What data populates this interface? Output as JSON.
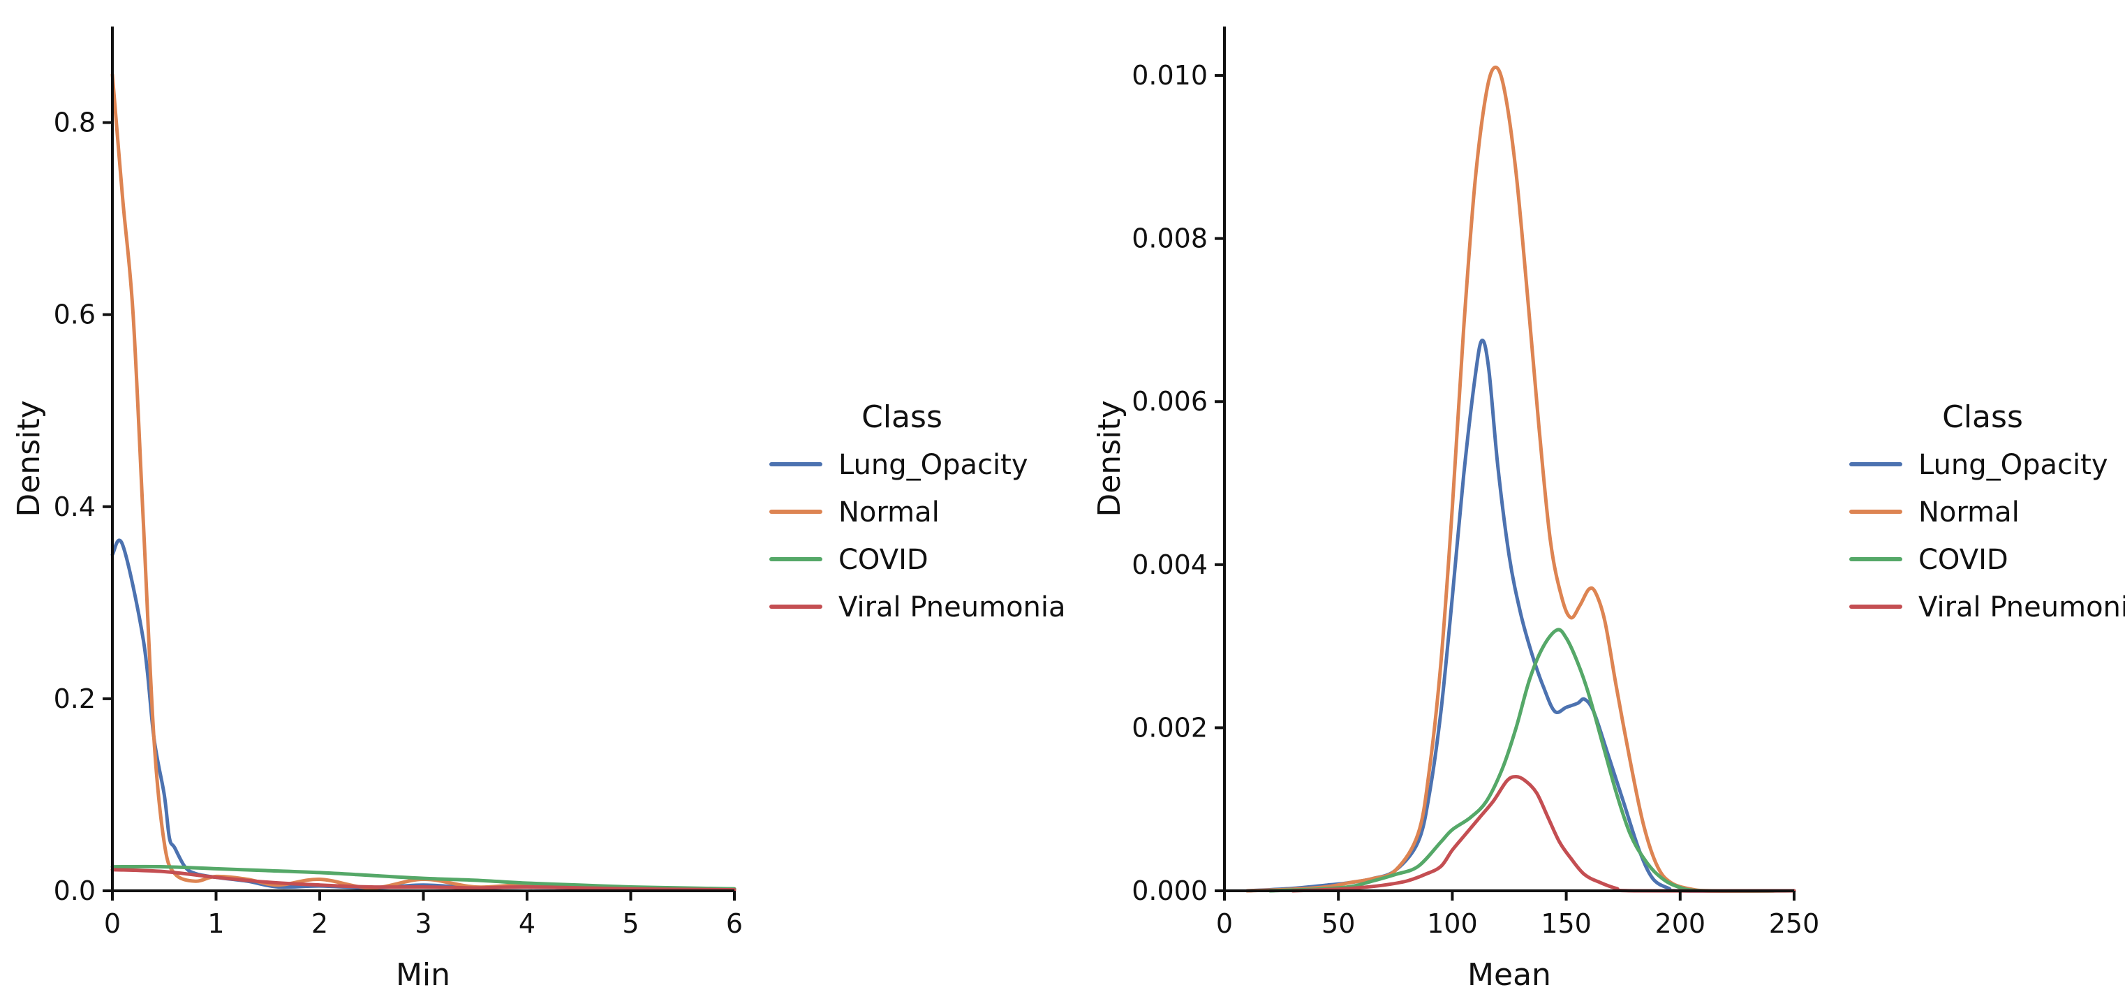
{
  "chart_data": [
    {
      "type": "line",
      "subtype": "kde",
      "xlabel": "Min",
      "ylabel": "Density",
      "xlim": [
        0,
        6
      ],
      "ylim": [
        0,
        0.9
      ],
      "x_ticks": [
        0,
        1,
        2,
        3,
        4,
        5,
        6
      ],
      "x_tick_labels": [
        "0",
        "1",
        "2",
        "3",
        "4",
        "5",
        "6"
      ],
      "y_ticks": [
        0,
        0.2,
        0.4,
        0.6,
        0.8
      ],
      "y_tick_labels": [
        "0.0",
        "0.2",
        "0.4",
        "0.6",
        "0.8"
      ],
      "legend": {
        "title": "Class",
        "position": "right"
      },
      "series": [
        {
          "name": "Lung_Opacity",
          "color": "#4C72B0",
          "points": [
            [
              0,
              0.35
            ],
            [
              0.1,
              0.36
            ],
            [
              0.3,
              0.26
            ],
            [
              0.4,
              0.16
            ],
            [
              0.5,
              0.1
            ],
            [
              0.55,
              0.055
            ],
            [
              0.6,
              0.045
            ],
            [
              0.7,
              0.025
            ],
            [
              0.8,
              0.018
            ],
            [
              1,
              0.014
            ],
            [
              1.3,
              0.01
            ],
            [
              1.6,
              0.004
            ],
            [
              2,
              0.005
            ],
            [
              2.5,
              0.003
            ],
            [
              3,
              0.006
            ],
            [
              3.5,
              0.003
            ],
            [
              4,
              0.004
            ],
            [
              5,
              0.002
            ],
            [
              6,
              0.001
            ]
          ]
        },
        {
          "name": "Normal",
          "color": "#DD8452",
          "points": [
            [
              0,
              0.85
            ],
            [
              0.1,
              0.72
            ],
            [
              0.2,
              0.6
            ],
            [
              0.3,
              0.38
            ],
            [
              0.4,
              0.16
            ],
            [
              0.5,
              0.05
            ],
            [
              0.6,
              0.018
            ],
            [
              0.8,
              0.01
            ],
            [
              1,
              0.015
            ],
            [
              1.3,
              0.012
            ],
            [
              1.6,
              0.006
            ],
            [
              2,
              0.012
            ],
            [
              2.5,
              0.003
            ],
            [
              3,
              0.012
            ],
            [
              3.5,
              0.004
            ],
            [
              4,
              0.006
            ],
            [
              5,
              0.003
            ],
            [
              6,
              0.002
            ]
          ]
        },
        {
          "name": "COVID",
          "color": "#55A868",
          "points": [
            [
              0,
              0.025
            ],
            [
              0.5,
              0.025
            ],
            [
              1,
              0.023
            ],
            [
              1.5,
              0.021
            ],
            [
              2,
              0.019
            ],
            [
              2.5,
              0.016
            ],
            [
              3,
              0.013
            ],
            [
              3.5,
              0.011
            ],
            [
              4,
              0.008
            ],
            [
              4.5,
              0.006
            ],
            [
              5,
              0.004
            ],
            [
              5.5,
              0.003
            ],
            [
              6,
              0.002
            ]
          ]
        },
        {
          "name": "Viral Pneumonia",
          "color": "#C44E52",
          "points": [
            [
              0,
              0.022
            ],
            [
              0.5,
              0.02
            ],
            [
              1,
              0.014
            ],
            [
              1.5,
              0.009
            ],
            [
              2,
              0.006
            ],
            [
              2.5,
              0.004
            ],
            [
              3,
              0.004
            ],
            [
              3.5,
              0.003
            ],
            [
              4,
              0.004
            ],
            [
              5,
              0.002
            ],
            [
              6,
              0.001
            ]
          ]
        }
      ]
    },
    {
      "type": "line",
      "subtype": "kde",
      "xlabel": "Mean",
      "ylabel": "Density",
      "xlim": [
        0,
        250
      ],
      "ylim": [
        0,
        0.0106
      ],
      "x_ticks": [
        0,
        50,
        100,
        150,
        200,
        250
      ],
      "x_tick_labels": [
        "0",
        "50",
        "100",
        "150",
        "200",
        "250"
      ],
      "y_ticks": [
        0,
        0.002,
        0.004,
        0.006,
        0.008,
        0.01
      ],
      "y_tick_labels": [
        "0.000",
        "0.002",
        "0.004",
        "0.006",
        "0.008",
        "0.010"
      ],
      "legend": {
        "title": "Class",
        "position": "right"
      },
      "series": [
        {
          "name": "Lung_Opacity",
          "color": "#4C72B0",
          "points": [
            [
              10,
              0
            ],
            [
              30,
              3e-05
            ],
            [
              45,
              7e-05
            ],
            [
              55,
              0.0001
            ],
            [
              65,
              0.00015
            ],
            [
              75,
              0.00025
            ],
            [
              85,
              0.0006
            ],
            [
              90,
              0.0012
            ],
            [
              95,
              0.0022
            ],
            [
              100,
              0.0036
            ],
            [
              105,
              0.0051
            ],
            [
              110,
              0.0063
            ],
            [
              113,
              0.00675
            ],
            [
              116,
              0.0064
            ],
            [
              120,
              0.0052
            ],
            [
              125,
              0.0041
            ],
            [
              130,
              0.0034
            ],
            [
              135,
              0.0029
            ],
            [
              140,
              0.0025
            ],
            [
              145,
              0.0022
            ],
            [
              150,
              0.00225
            ],
            [
              155,
              0.0023
            ],
            [
              158,
              0.00235
            ],
            [
              162,
              0.0022
            ],
            [
              168,
              0.0017
            ],
            [
              175,
              0.0011
            ],
            [
              182,
              0.0005
            ],
            [
              188,
              0.00015
            ],
            [
              195,
              3e-05
            ],
            [
              200,
              0.0
            ],
            [
              250,
              0
            ]
          ]
        },
        {
          "name": "Normal",
          "color": "#DD8452",
          "points": [
            [
              10,
              0
            ],
            [
              30,
              2e-05
            ],
            [
              45,
              5e-05
            ],
            [
              55,
              0.0001
            ],
            [
              65,
              0.00015
            ],
            [
              75,
              0.00025
            ],
            [
              85,
              0.0007
            ],
            [
              90,
              0.0015
            ],
            [
              95,
              0.0028
            ],
            [
              100,
              0.0047
            ],
            [
              105,
              0.0069
            ],
            [
              110,
              0.0087
            ],
            [
              115,
              0.0098
            ],
            [
              119,
              0.0101
            ],
            [
              123,
              0.0098
            ],
            [
              128,
              0.0088
            ],
            [
              133,
              0.0073
            ],
            [
              138,
              0.0057
            ],
            [
              143,
              0.0043
            ],
            [
              148,
              0.0036
            ],
            [
              152,
              0.00335
            ],
            [
              156,
              0.0035
            ],
            [
              160,
              0.0037
            ],
            [
              163,
              0.00365
            ],
            [
              167,
              0.0033
            ],
            [
              172,
              0.0025
            ],
            [
              178,
              0.0016
            ],
            [
              184,
              0.0008
            ],
            [
              190,
              0.0003
            ],
            [
              196,
              0.0001
            ],
            [
              205,
              2e-05
            ],
            [
              215,
              0.0
            ],
            [
              250,
              0
            ]
          ]
        },
        {
          "name": "COVID",
          "color": "#55A868",
          "points": [
            [
              20,
              0
            ],
            [
              40,
              2e-05
            ],
            [
              55,
              5e-05
            ],
            [
              65,
              0.00012
            ],
            [
              75,
              0.0002
            ],
            [
              85,
              0.0003
            ],
            [
              95,
              0.0006
            ],
            [
              100,
              0.00075
            ],
            [
              108,
              0.0009
            ],
            [
              115,
              0.0011
            ],
            [
              122,
              0.0015
            ],
            [
              128,
              0.002
            ],
            [
              134,
              0.0026
            ],
            [
              140,
              0.003
            ],
            [
              146,
              0.0032
            ],
            [
              150,
              0.0031
            ],
            [
              155,
              0.0028
            ],
            [
              160,
              0.0024
            ],
            [
              166,
              0.0018
            ],
            [
              172,
              0.0012
            ],
            [
              178,
              0.0007
            ],
            [
              184,
              0.0004
            ],
            [
              190,
              0.0002
            ],
            [
              198,
              6e-05
            ],
            [
              210,
              0.0
            ],
            [
              250,
              0
            ]
          ]
        },
        {
          "name": "Viral Pneumonia",
          "color": "#C44E52",
          "points": [
            [
              30,
              0
            ],
            [
              50,
              2e-05
            ],
            [
              60,
              4e-05
            ],
            [
              70,
              7e-05
            ],
            [
              80,
              0.00012
            ],
            [
              88,
              0.0002
            ],
            [
              95,
              0.0003
            ],
            [
              100,
              0.0005
            ],
            [
              106,
              0.0007
            ],
            [
              112,
              0.0009
            ],
            [
              118,
              0.0011
            ],
            [
              124,
              0.00135
            ],
            [
              128,
              0.0014
            ],
            [
              132,
              0.00135
            ],
            [
              137,
              0.0012
            ],
            [
              142,
              0.0009
            ],
            [
              147,
              0.0006
            ],
            [
              152,
              0.0004
            ],
            [
              158,
              0.0002
            ],
            [
              165,
              0.0001
            ],
            [
              172,
              3e-05
            ],
            [
              180,
              0.0
            ],
            [
              250,
              0
            ]
          ]
        }
      ]
    }
  ]
}
